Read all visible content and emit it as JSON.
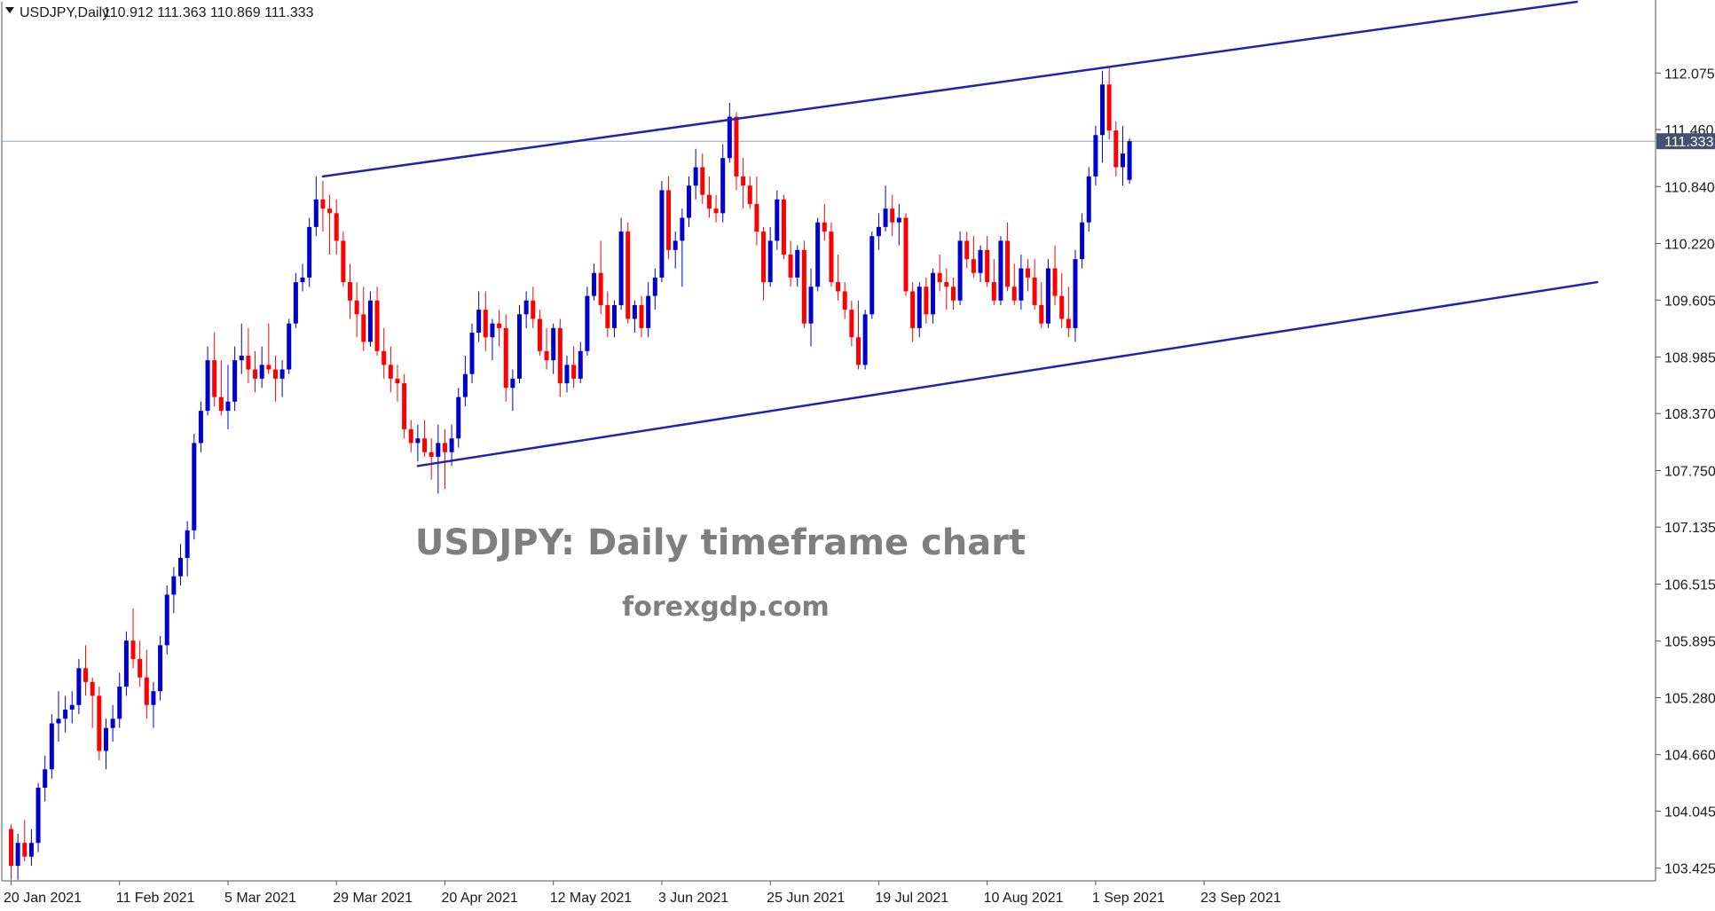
{
  "header": {
    "symbol": "USDJPY,Daily",
    "ohlc": "110.912 111.363 110.869 111.333"
  },
  "watermark": {
    "title": "USDJPY: Daily timeframe chart",
    "subtitle": "forexgdp.com"
  },
  "colors": {
    "bull": "#0000cd",
    "bear": "#ff0000",
    "trendline": "#1f23b3",
    "bid_line": "#8fa3c8",
    "price_tag_bg": "#42526e",
    "axis": "#555555",
    "text": "#1a1a1a",
    "watermark": "#7f7f7f"
  },
  "chart_data": {
    "type": "candlestick",
    "symbol": "USDJPY",
    "timeframe": "Daily",
    "last_ohlc": {
      "open": 110.912,
      "high": 111.363,
      "low": 110.869,
      "close": 111.333
    },
    "current_price": 111.333,
    "current_price_label": "111.333",
    "ylim": [
      103.2,
      112.85
    ],
    "y_ticks": [
      {
        "value": 112.075,
        "label": "112.075"
      },
      {
        "value": 111.46,
        "label": "111.460"
      },
      {
        "value": 110.84,
        "label": "110.840"
      },
      {
        "value": 110.22,
        "label": "110.220"
      },
      {
        "value": 109.605,
        "label": "109.605"
      },
      {
        "value": 108.985,
        "label": "108.985"
      },
      {
        "value": 108.37,
        "label": "108.370"
      },
      {
        "value": 107.75,
        "label": "107.750"
      },
      {
        "value": 107.135,
        "label": "107.135"
      },
      {
        "value": 106.515,
        "label": "106.515"
      },
      {
        "value": 105.895,
        "label": "105.895"
      },
      {
        "value": 105.28,
        "label": "105.280"
      },
      {
        "value": 104.66,
        "label": "104.660"
      },
      {
        "value": 104.045,
        "label": "104.045"
      },
      {
        "value": 103.425,
        "label": "103.425"
      }
    ],
    "x_ticks": [
      {
        "index": 0,
        "label": "20 Jan 2021"
      },
      {
        "index": 16,
        "label": "11 Feb 2021"
      },
      {
        "index": 32,
        "label": "5 Mar 2021"
      },
      {
        "index": 48,
        "label": "29 Mar 2021"
      },
      {
        "index": 64,
        "label": "20 Apr 2021"
      },
      {
        "index": 80,
        "label": "12 May 2021"
      },
      {
        "index": 96,
        "label": "3 Jun 2021"
      },
      {
        "index": 112,
        "label": "25 Jun 2021"
      },
      {
        "index": 128,
        "label": "19 Jul 2021"
      },
      {
        "index": 144,
        "label": "10 Aug 2021"
      },
      {
        "index": 160,
        "label": "1 Sep 2021"
      },
      {
        "index": 176,
        "label": "23 Sep 2021"
      }
    ],
    "candles": [
      [
        103.85,
        103.9,
        103.3,
        103.45
      ],
      [
        103.45,
        103.8,
        103.3,
        103.7
      ],
      [
        103.7,
        103.95,
        103.5,
        103.55
      ],
      [
        103.55,
        103.85,
        103.45,
        103.7
      ],
      [
        103.7,
        104.35,
        103.6,
        104.3
      ],
      [
        104.3,
        104.65,
        104.15,
        104.5
      ],
      [
        104.5,
        105.1,
        104.4,
        105.0
      ],
      [
        105.0,
        105.35,
        104.8,
        105.05
      ],
      [
        105.05,
        105.3,
        104.9,
        105.15
      ],
      [
        105.15,
        105.35,
        105.0,
        105.2
      ],
      [
        105.2,
        105.7,
        105.1,
        105.6
      ],
      [
        105.6,
        105.85,
        105.3,
        105.45
      ],
      [
        105.45,
        105.5,
        104.95,
        105.3
      ],
      [
        105.3,
        105.4,
        104.6,
        104.7
      ],
      [
        104.7,
        105.05,
        104.5,
        104.95
      ],
      [
        104.95,
        105.2,
        104.8,
        105.05
      ],
      [
        105.05,
        105.55,
        104.95,
        105.4
      ],
      [
        105.4,
        106.0,
        105.3,
        105.9
      ],
      [
        105.9,
        106.25,
        105.6,
        105.7
      ],
      [
        105.7,
        105.9,
        105.4,
        105.5
      ],
      [
        105.5,
        105.8,
        105.05,
        105.2
      ],
      [
        105.2,
        105.45,
        104.95,
        105.35
      ],
      [
        105.35,
        105.95,
        105.25,
        105.85
      ],
      [
        105.85,
        106.5,
        105.75,
        106.4
      ],
      [
        106.4,
        106.7,
        106.2,
        106.6
      ],
      [
        106.6,
        106.95,
        106.5,
        106.8
      ],
      [
        106.8,
        107.2,
        106.6,
        107.1
      ],
      [
        107.1,
        108.15,
        107.0,
        108.05
      ],
      [
        108.05,
        108.5,
        107.95,
        108.4
      ],
      [
        108.4,
        109.1,
        108.35,
        108.95
      ],
      [
        108.95,
        109.25,
        108.45,
        108.55
      ],
      [
        108.55,
        108.95,
        108.35,
        108.4
      ],
      [
        108.4,
        108.9,
        108.2,
        108.5
      ],
      [
        108.5,
        109.1,
        108.4,
        108.95
      ],
      [
        108.95,
        109.35,
        108.8,
        109.0
      ],
      [
        109.0,
        109.3,
        108.7,
        108.85
      ],
      [
        108.85,
        109.05,
        108.6,
        108.75
      ],
      [
        108.75,
        109.1,
        108.65,
        108.9
      ],
      [
        108.9,
        109.35,
        108.8,
        108.85
      ],
      [
        108.85,
        109.0,
        108.5,
        108.75
      ],
      [
        108.75,
        108.95,
        108.55,
        108.85
      ],
      [
        108.85,
        109.4,
        108.8,
        109.35
      ],
      [
        109.35,
        109.9,
        109.3,
        109.8
      ],
      [
        109.8,
        110.0,
        109.7,
        109.85
      ],
      [
        109.85,
        110.5,
        109.75,
        110.4
      ],
      [
        110.4,
        110.95,
        110.3,
        110.7
      ],
      [
        110.7,
        110.9,
        110.35,
        110.6
      ],
      [
        110.6,
        110.75,
        110.1,
        110.55
      ],
      [
        110.55,
        110.7,
        110.1,
        110.25
      ],
      [
        110.25,
        110.35,
        109.75,
        109.8
      ],
      [
        109.8,
        110.0,
        109.4,
        109.6
      ],
      [
        109.6,
        109.8,
        109.2,
        109.45
      ],
      [
        109.45,
        109.75,
        109.05,
        109.15
      ],
      [
        109.15,
        109.7,
        109.1,
        109.6
      ],
      [
        109.6,
        109.75,
        109.0,
        109.05
      ],
      [
        109.05,
        109.3,
        108.75,
        108.9
      ],
      [
        108.9,
        109.1,
        108.6,
        108.75
      ],
      [
        108.75,
        108.9,
        108.5,
        108.7
      ],
      [
        108.7,
        108.8,
        108.1,
        108.2
      ],
      [
        108.2,
        108.3,
        107.95,
        108.05
      ],
      [
        108.05,
        108.25,
        107.85,
        108.1
      ],
      [
        108.1,
        108.3,
        107.9,
        107.95
      ],
      [
        107.95,
        108.1,
        107.65,
        107.9
      ],
      [
        107.9,
        108.25,
        107.5,
        108.05
      ],
      [
        108.05,
        108.2,
        107.55,
        107.95
      ],
      [
        107.95,
        108.25,
        107.8,
        108.1
      ],
      [
        108.1,
        108.65,
        108.0,
        108.55
      ],
      [
        108.55,
        109.0,
        108.45,
        108.8
      ],
      [
        108.8,
        109.35,
        108.7,
        109.25
      ],
      [
        109.25,
        109.7,
        109.15,
        109.5
      ],
      [
        109.5,
        109.7,
        109.05,
        109.2
      ],
      [
        109.2,
        109.4,
        108.95,
        109.35
      ],
      [
        109.35,
        109.5,
        109.1,
        109.3
      ],
      [
        109.3,
        109.45,
        108.5,
        108.65
      ],
      [
        108.65,
        108.85,
        108.4,
        108.75
      ],
      [
        108.75,
        109.55,
        108.7,
        109.45
      ],
      [
        109.45,
        109.7,
        109.3,
        109.6
      ],
      [
        109.6,
        109.75,
        109.3,
        109.4
      ],
      [
        109.4,
        109.5,
        109.0,
        109.05
      ],
      [
        109.05,
        109.3,
        108.85,
        108.95
      ],
      [
        108.95,
        109.35,
        108.8,
        109.3
      ],
      [
        109.3,
        109.4,
        108.55,
        108.7
      ],
      [
        108.7,
        109.0,
        108.6,
        108.9
      ],
      [
        108.9,
        109.1,
        108.65,
        108.75
      ],
      [
        108.75,
        109.15,
        108.7,
        109.05
      ],
      [
        109.05,
        109.75,
        109.0,
        109.65
      ],
      [
        109.65,
        110.0,
        109.6,
        109.9
      ],
      [
        109.9,
        110.25,
        109.45,
        109.55
      ],
      [
        109.55,
        109.7,
        109.2,
        109.3
      ],
      [
        109.3,
        109.6,
        109.2,
        109.55
      ],
      [
        109.55,
        110.5,
        109.5,
        110.35
      ],
      [
        110.35,
        110.45,
        109.35,
        109.4
      ],
      [
        109.4,
        109.6,
        109.25,
        109.55
      ],
      [
        109.55,
        109.65,
        109.2,
        109.3
      ],
      [
        109.3,
        109.8,
        109.2,
        109.65
      ],
      [
        109.65,
        109.95,
        109.5,
        109.85
      ],
      [
        109.85,
        110.9,
        109.8,
        110.8
      ],
      [
        110.8,
        110.95,
        110.05,
        110.15
      ],
      [
        110.15,
        110.35,
        109.95,
        110.25
      ],
      [
        110.25,
        110.6,
        109.75,
        110.5
      ],
      [
        110.5,
        110.95,
        110.4,
        110.85
      ],
      [
        110.85,
        111.25,
        110.7,
        111.05
      ],
      [
        111.05,
        111.2,
        110.65,
        110.75
      ],
      [
        110.75,
        110.95,
        110.5,
        110.6
      ],
      [
        110.6,
        110.75,
        110.45,
        110.55
      ],
      [
        110.55,
        111.3,
        110.45,
        111.15
      ],
      [
        111.15,
        111.75,
        111.1,
        111.6
      ],
      [
        111.6,
        111.65,
        110.8,
        110.95
      ],
      [
        110.95,
        111.15,
        110.6,
        110.85
      ],
      [
        110.85,
        110.95,
        110.6,
        110.65
      ],
      [
        110.65,
        110.95,
        110.2,
        110.35
      ],
      [
        110.35,
        110.4,
        109.6,
        109.8
      ],
      [
        109.8,
        110.4,
        109.75,
        110.25
      ],
      [
        110.25,
        110.8,
        110.15,
        110.7
      ],
      [
        110.7,
        110.75,
        110.05,
        110.1
      ],
      [
        110.1,
        110.25,
        109.75,
        109.85
      ],
      [
        109.85,
        110.2,
        109.75,
        110.15
      ],
      [
        110.15,
        110.25,
        109.3,
        109.35
      ],
      [
        109.35,
        109.95,
        109.1,
        109.75
      ],
      [
        109.75,
        110.5,
        109.7,
        110.45
      ],
      [
        110.45,
        110.65,
        110.25,
        110.35
      ],
      [
        110.35,
        110.45,
        109.75,
        109.8
      ],
      [
        109.8,
        110.1,
        109.6,
        109.7
      ],
      [
        109.7,
        109.8,
        109.4,
        109.5
      ],
      [
        109.5,
        109.6,
        109.1,
        109.2
      ],
      [
        109.2,
        109.6,
        108.85,
        108.9
      ],
      [
        108.9,
        109.5,
        108.85,
        109.45
      ],
      [
        109.45,
        110.35,
        109.4,
        110.3
      ],
      [
        110.3,
        110.55,
        110.15,
        110.4
      ],
      [
        110.4,
        110.85,
        110.35,
        110.6
      ],
      [
        110.6,
        110.75,
        110.3,
        110.45
      ],
      [
        110.45,
        110.65,
        110.2,
        110.5
      ],
      [
        110.5,
        110.55,
        109.65,
        109.7
      ],
      [
        109.7,
        109.8,
        109.15,
        109.3
      ],
      [
        109.3,
        109.8,
        109.2,
        109.75
      ],
      [
        109.75,
        109.85,
        109.35,
        109.45
      ],
      [
        109.45,
        109.95,
        109.35,
        109.9
      ],
      [
        109.9,
        110.1,
        109.7,
        109.8
      ],
      [
        109.8,
        109.95,
        109.5,
        109.75
      ],
      [
        109.75,
        109.85,
        109.5,
        109.6
      ],
      [
        109.6,
        110.35,
        109.55,
        110.25
      ],
      [
        110.25,
        110.35,
        109.95,
        110.05
      ],
      [
        110.05,
        110.3,
        109.85,
        109.9
      ],
      [
        109.9,
        110.2,
        109.8,
        110.15
      ],
      [
        110.15,
        110.3,
        109.75,
        109.8
      ],
      [
        109.8,
        110.05,
        109.55,
        109.6
      ],
      [
        109.6,
        110.3,
        109.55,
        110.25
      ],
      [
        110.25,
        110.45,
        109.7,
        109.75
      ],
      [
        109.75,
        110.0,
        109.55,
        109.6
      ],
      [
        109.6,
        110.1,
        109.5,
        109.95
      ],
      [
        109.95,
        110.05,
        109.7,
        109.85
      ],
      [
        109.85,
        110.05,
        109.5,
        109.55
      ],
      [
        109.55,
        109.8,
        109.3,
        109.35
      ],
      [
        109.35,
        110.05,
        109.3,
        109.95
      ],
      [
        109.95,
        110.2,
        109.55,
        109.65
      ],
      [
        109.65,
        109.9,
        109.3,
        109.4
      ],
      [
        109.4,
        109.75,
        109.2,
        109.3
      ],
      [
        109.3,
        110.15,
        109.15,
        110.05
      ],
      [
        110.05,
        110.55,
        109.95,
        110.45
      ],
      [
        110.45,
        111.05,
        110.35,
        110.95
      ],
      [
        110.95,
        111.5,
        110.85,
        111.4
      ],
      [
        111.4,
        112.1,
        111.1,
        111.95
      ],
      [
        111.95,
        112.15,
        111.35,
        111.45
      ],
      [
        111.45,
        111.55,
        110.95,
        111.05
      ],
      [
        111.05,
        111.5,
        110.85,
        111.2
      ],
      [
        110.912,
        111.363,
        110.869,
        111.333
      ]
    ],
    "candle_start_date": "20 Jan 2021",
    "trendlines": [
      {
        "name": "upper-channel",
        "from": {
          "index": 46,
          "price": 110.95
        },
        "to": {
          "index": 231,
          "price": 112.85
        }
      },
      {
        "name": "lower-channel",
        "from": {
          "index": 60,
          "price": 107.8
        },
        "to": {
          "index": 234,
          "price": 109.8
        }
      }
    ]
  }
}
